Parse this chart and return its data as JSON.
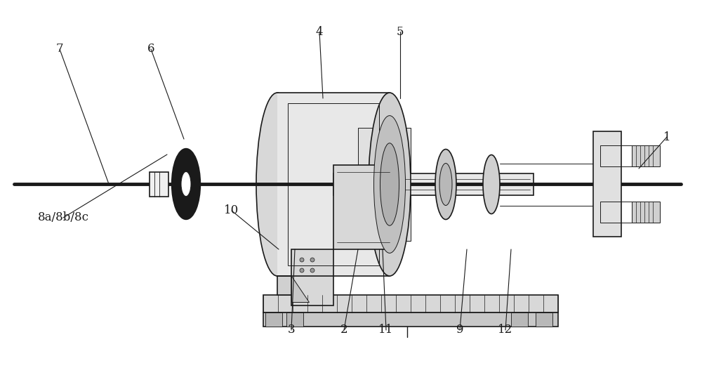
{
  "bg_color": "#ffffff",
  "line_color": "#1a1a1a",
  "figsize": [
    10.0,
    5.24
  ],
  "dpi": 100,
  "labels_info": [
    [
      "1",
      950,
      195,
      910,
      240
    ],
    [
      "2",
      490,
      470,
      510,
      355
    ],
    [
      "3",
      415,
      470,
      420,
      355
    ],
    [
      "4",
      455,
      45,
      460,
      140
    ],
    [
      "5",
      570,
      45,
      570,
      140
    ],
    [
      "6",
      215,
      70,
      262,
      198
    ],
    [
      "7",
      85,
      70,
      155,
      262
    ],
    [
      "8a/8b/8c",
      90,
      310,
      238,
      220
    ],
    [
      "9",
      655,
      470,
      665,
      355
    ],
    [
      "10",
      330,
      300,
      397,
      355
    ],
    [
      "11",
      550,
      470,
      545,
      355
    ],
    [
      "12",
      720,
      470,
      728,
      355
    ]
  ]
}
